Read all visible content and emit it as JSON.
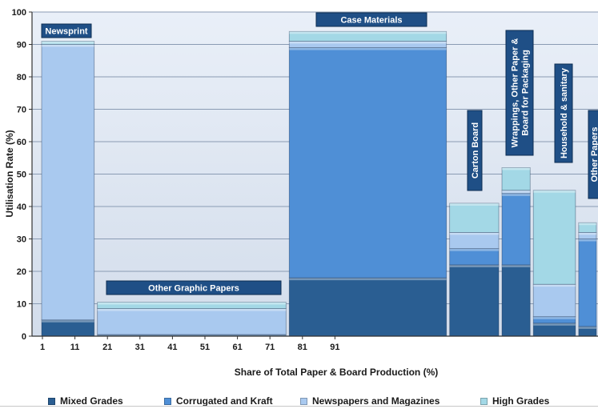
{
  "chart_data": {
    "type": "bar",
    "subtype": "variable-width stacked (marimekko)",
    "xlabel": "Share of Total Paper & Board Production (%)",
    "ylabel": "Utilisation Rate (%)",
    "xlim": [
      0,
      100
    ],
    "ylim": [
      0,
      100
    ],
    "x_ticks": [
      "1",
      "11",
      "21",
      "31",
      "41",
      "51",
      "61",
      "71",
      "81",
      "91"
    ],
    "y_ticks": [
      "0",
      "10",
      "20",
      "30",
      "40",
      "50",
      "60",
      "70",
      "80",
      "90",
      "100"
    ],
    "grid": true,
    "legend_position": "bottom",
    "series": [
      {
        "name": "Mixed Grades",
        "color": "#2a5e92"
      },
      {
        "name": "Corrugated and Kraft",
        "color": "#4f8fd6"
      },
      {
        "name": "Newspapers and Magazines",
        "color": "#a9c9ef"
      },
      {
        "name": "High Grades",
        "color": "#a3d8e6"
      }
    ],
    "groups": [
      {
        "label": "Newsprint",
        "x_start": 0,
        "x_end": 16,
        "values": [
          5,
          0,
          85,
          1
        ]
      },
      {
        "label": "Other Graphic Papers",
        "x_start": 16,
        "x_end": 71,
        "values": [
          0.5,
          0,
          8,
          2
        ]
      },
      {
        "label": "Case Materials",
        "x_start": 71,
        "x_end": 117,
        "values": [
          18,
          71,
          2,
          3
        ]
      },
      {
        "label": "Carton Board",
        "x_start": 117,
        "x_end": 132,
        "values": [
          22,
          5,
          5,
          9
        ]
      },
      {
        "label": "Wrappings, Other Paper & Board for Packaging",
        "x_start": 132,
        "x_end": 141,
        "values": [
          22,
          22,
          1,
          7
        ]
      },
      {
        "label": "Household & sanitary",
        "x_start": 141,
        "x_end": 154,
        "values": [
          4,
          2,
          10,
          29
        ]
      },
      {
        "label": "Other Papers",
        "x_start": 154,
        "x_end": 160,
        "values": [
          3,
          27,
          2,
          3
        ]
      }
    ]
  }
}
